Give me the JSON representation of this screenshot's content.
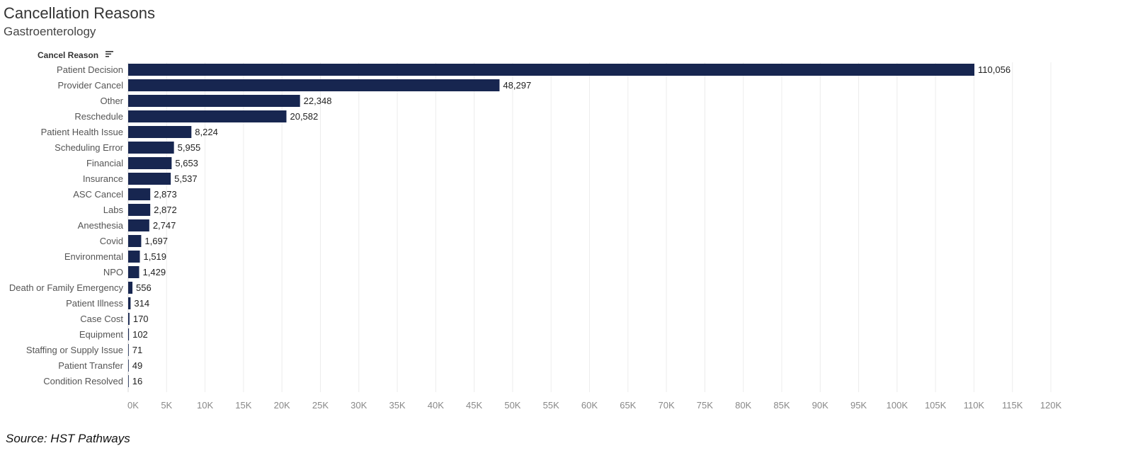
{
  "header": {
    "title": "Cancellation Reasons",
    "subtitle": "Gastroenterology"
  },
  "footer": {
    "source": "Source: HST Pathways"
  },
  "colors": {
    "bar": "#172650",
    "grid": "#ececec"
  },
  "chart_data": {
    "type": "bar",
    "orientation": "horizontal",
    "category_header": "Cancel Reason",
    "category_header_icon": "sort-icon",
    "categories": [
      "Patient Decision",
      "Provider Cancel",
      "Other",
      "Reschedule",
      "Patient Health Issue",
      "Scheduling Error",
      "Financial",
      "Insurance",
      "ASC Cancel",
      "Labs",
      "Anesthesia",
      "Covid",
      "Environmental",
      "NPO",
      "Death or Family Emergency",
      "Patient Illness",
      "Case Cost",
      "Equipment",
      "Staffing or Supply Issue",
      "Patient Transfer",
      "Condition Resolved"
    ],
    "values": [
      110056,
      48297,
      22348,
      20582,
      8224,
      5955,
      5653,
      5537,
      2873,
      2872,
      2747,
      1697,
      1519,
      1429,
      556,
      314,
      170,
      102,
      71,
      49,
      16
    ],
    "value_labels": [
      "110,056",
      "48,297",
      "22,348",
      "20,582",
      "8,224",
      "5,955",
      "5,653",
      "5,537",
      "2,873",
      "2,872",
      "2,747",
      "1,697",
      "1,519",
      "1,429",
      "556",
      "314",
      "170",
      "102",
      "71",
      "49",
      "16"
    ],
    "xlim": [
      0,
      120000
    ],
    "xticks": [
      0,
      5000,
      10000,
      15000,
      20000,
      25000,
      30000,
      35000,
      40000,
      45000,
      50000,
      55000,
      60000,
      65000,
      70000,
      75000,
      80000,
      85000,
      90000,
      95000,
      100000,
      105000,
      110000,
      115000,
      120000
    ],
    "xtick_labels": [
      "0K",
      "5K",
      "10K",
      "15K",
      "20K",
      "25K",
      "30K",
      "35K",
      "40K",
      "45K",
      "50K",
      "55K",
      "60K",
      "65K",
      "70K",
      "75K",
      "80K",
      "85K",
      "90K",
      "95K",
      "100K",
      "105K",
      "110K",
      "115K",
      "120K"
    ],
    "grid": true,
    "xlabel": "",
    "ylabel": ""
  }
}
